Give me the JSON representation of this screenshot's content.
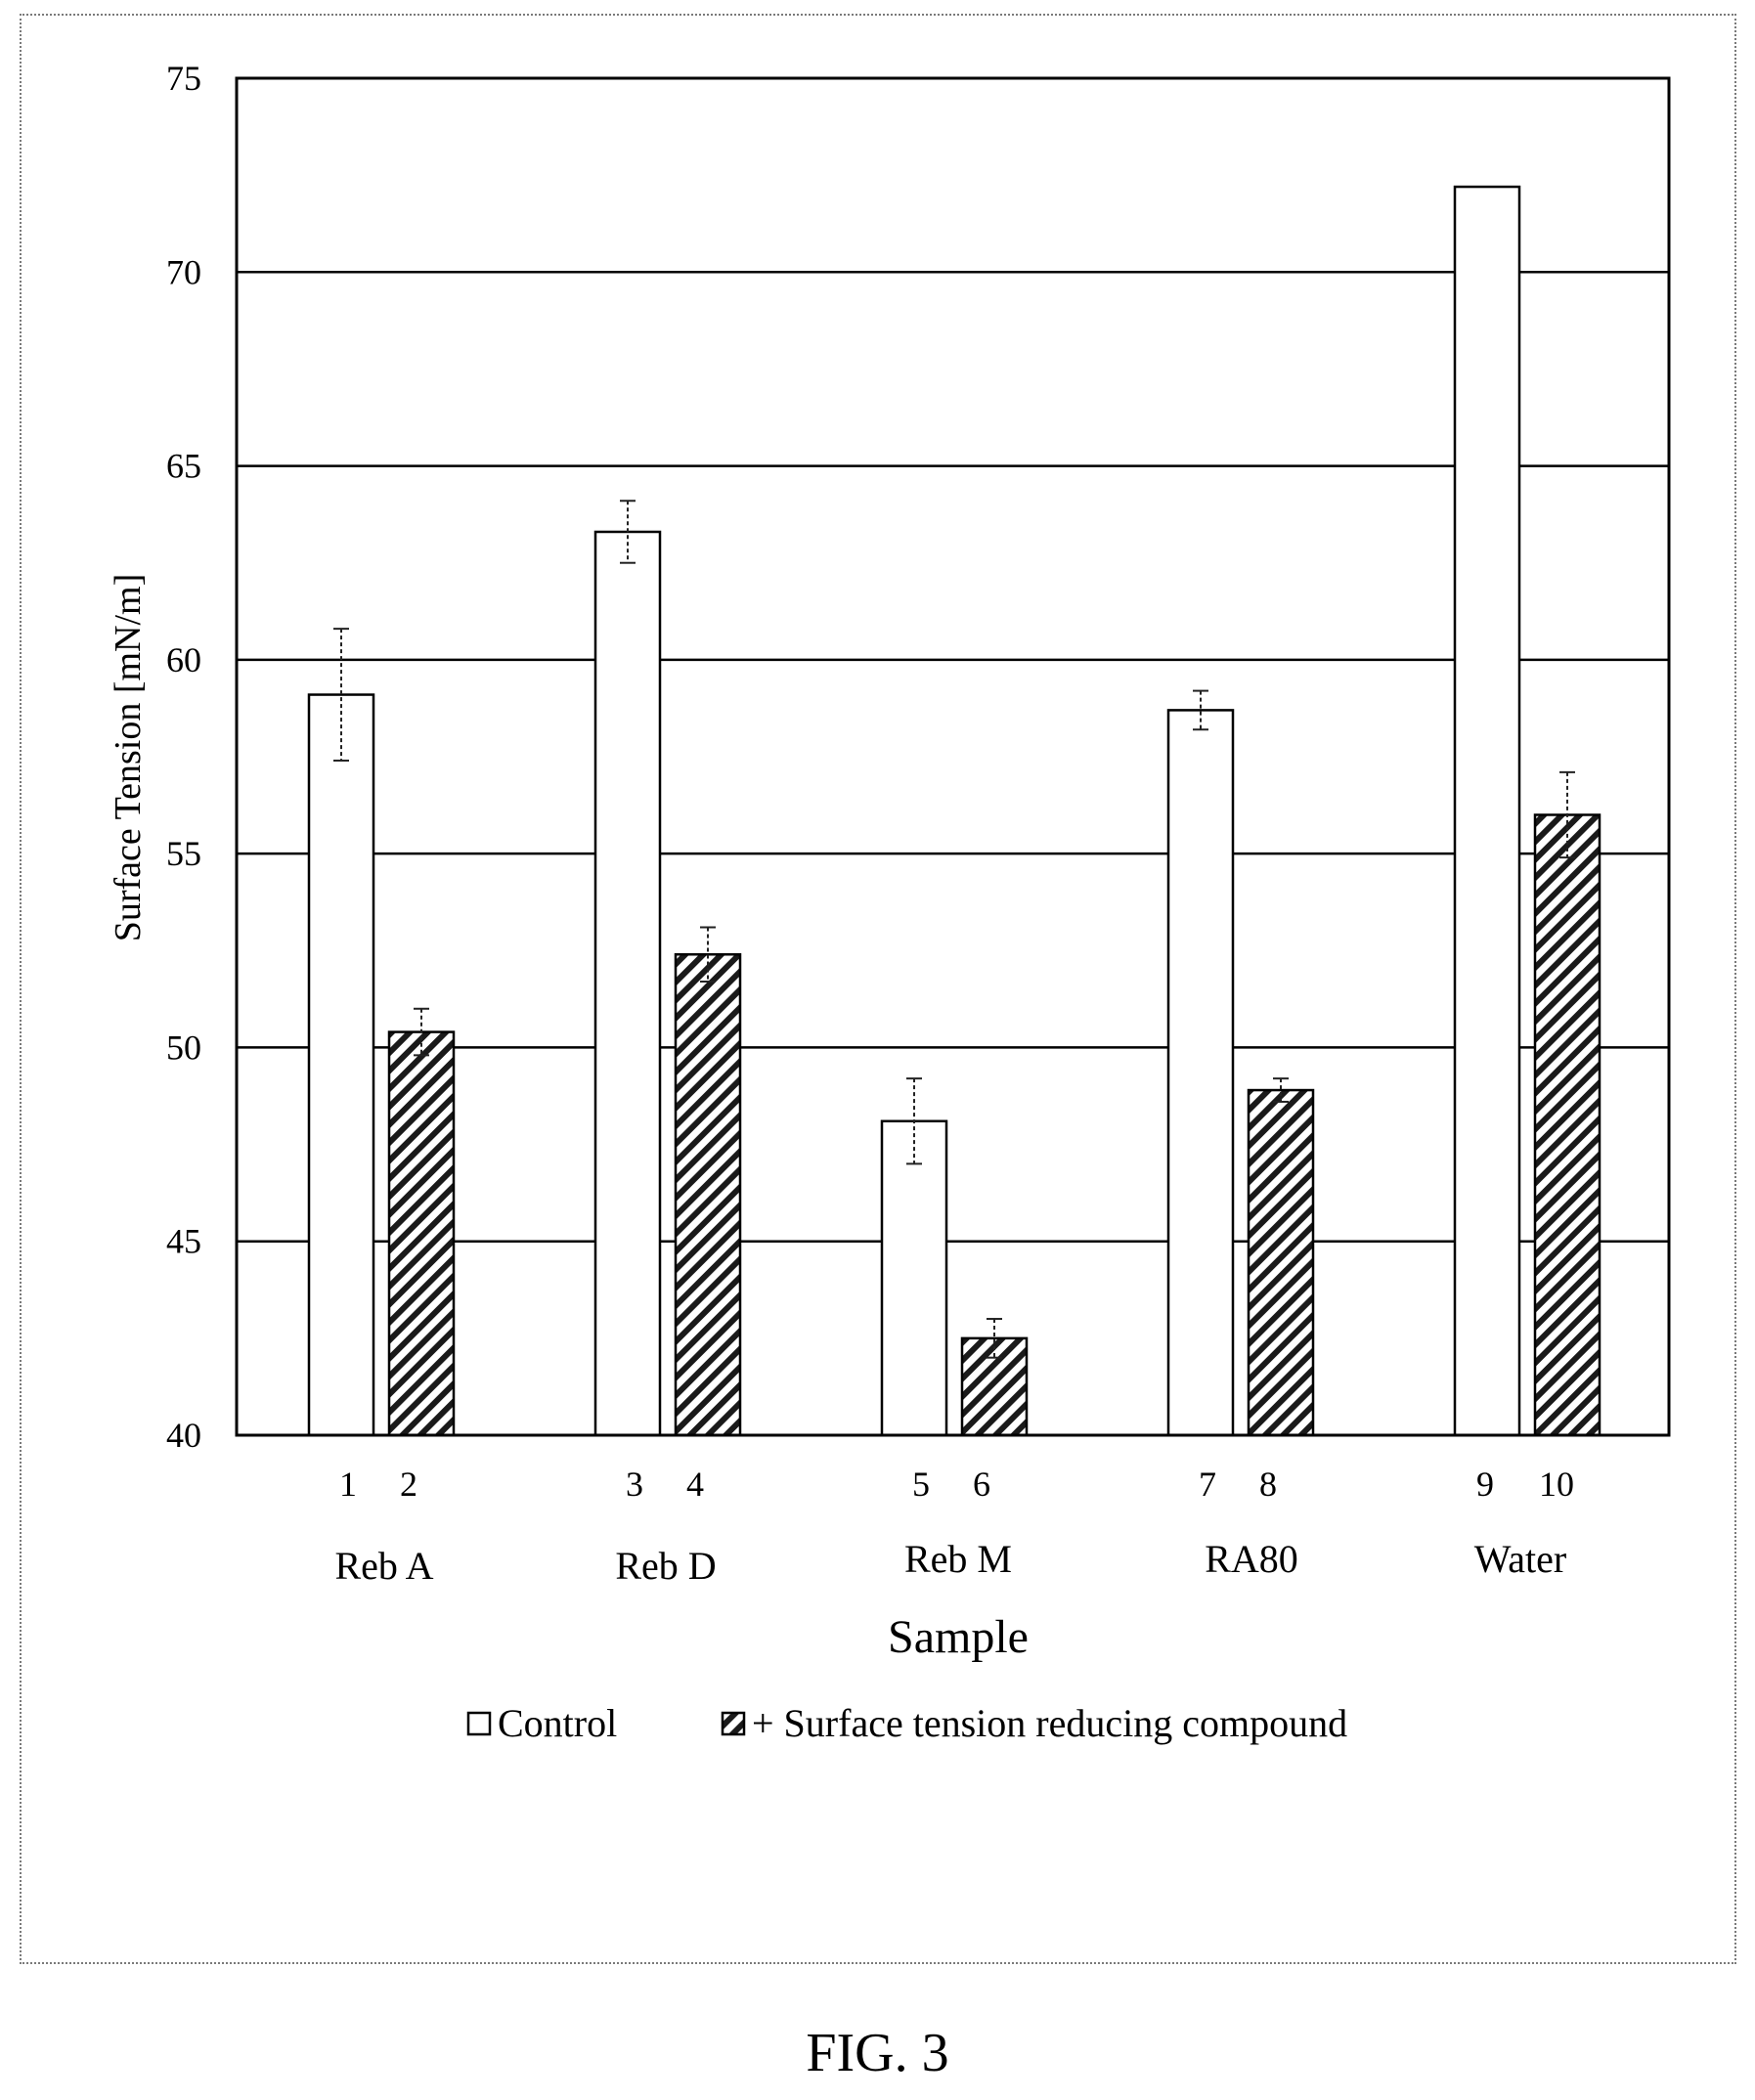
{
  "figure": {
    "caption": "FIG. 3"
  },
  "chart_data": {
    "type": "bar",
    "ylabel": "Surface Tension [mN/m]",
    "xlabel": "Sample",
    "ylim": [
      40,
      75
    ],
    "yticks": [
      40,
      45,
      50,
      55,
      60,
      65,
      70,
      75
    ],
    "grid": true,
    "legend_position": "bottom",
    "categories": [
      "Reb A",
      "Reb D",
      "Reb M",
      "RA80",
      "Water"
    ],
    "series": [
      {
        "name": "Control",
        "sample_numbers": [
          "1",
          "3",
          "5",
          "7",
          "9"
        ],
        "values": [
          59.1,
          63.3,
          48.1,
          58.7,
          72.2
        ],
        "error": [
          1.7,
          0.8,
          1.1,
          0.5,
          0
        ],
        "fill": "#ffffff",
        "pattern": "none"
      },
      {
        "name": "+ Surface tension reducing compound",
        "sample_numbers": [
          "2",
          "4",
          "6",
          "8",
          "10"
        ],
        "values": [
          50.4,
          52.4,
          42.5,
          48.9,
          56.0
        ],
        "error": [
          0.6,
          0.7,
          0.5,
          0.3,
          1.1
        ],
        "fill": "#ffffff",
        "pattern": "diagonal-hatch"
      }
    ]
  }
}
